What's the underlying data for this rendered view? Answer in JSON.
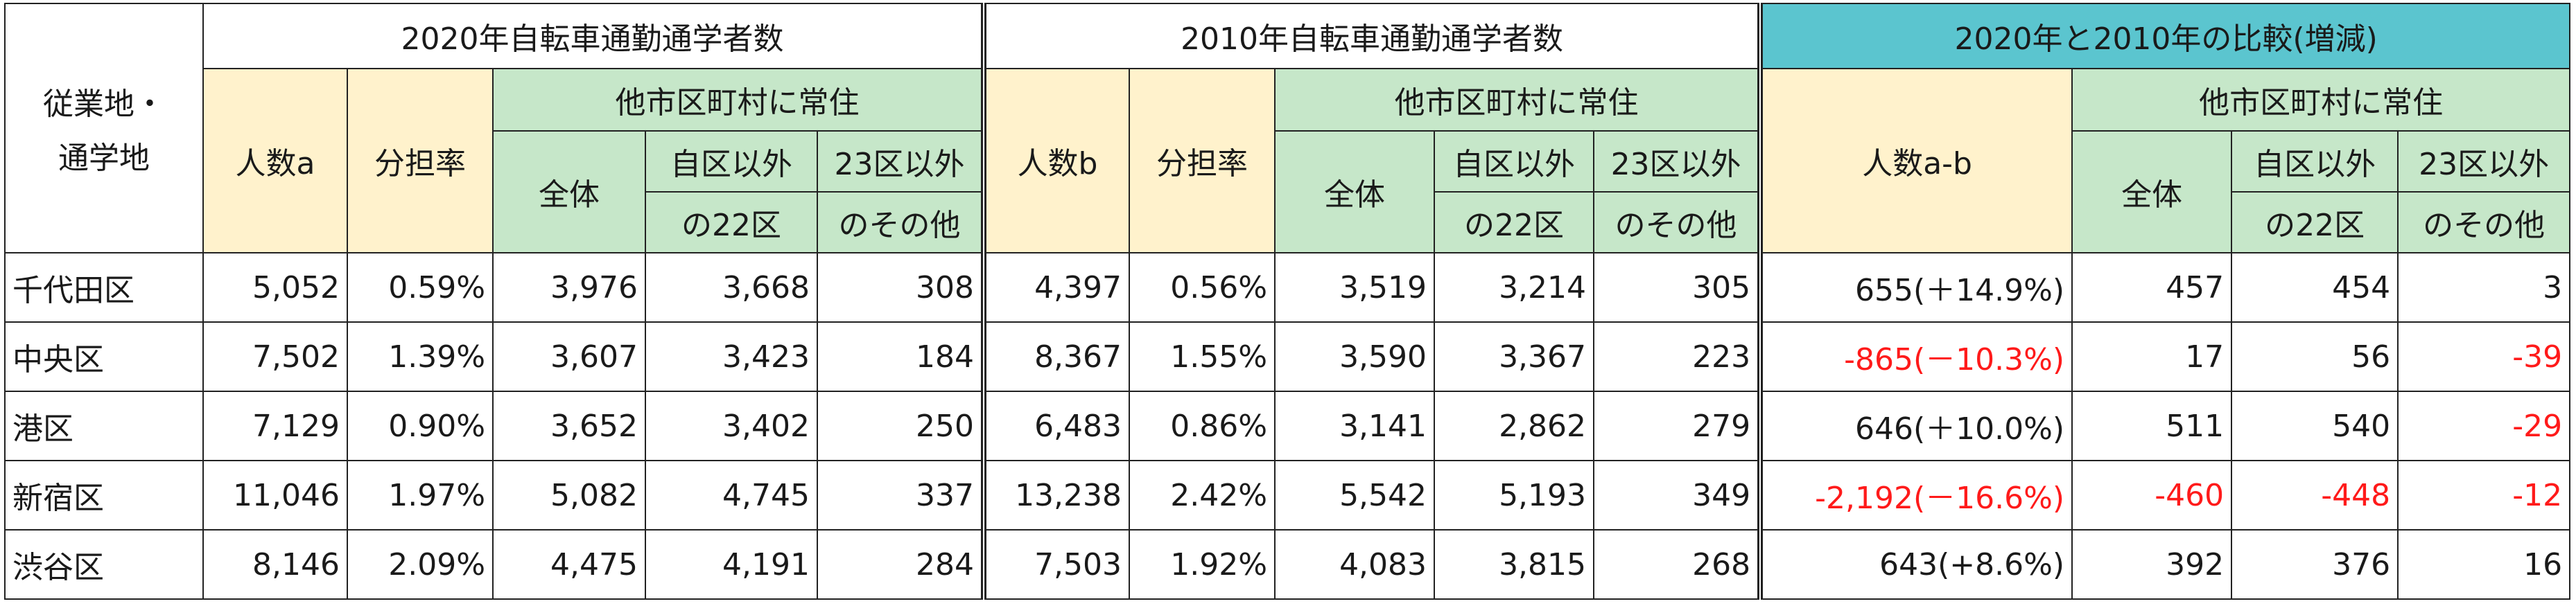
{
  "headers": {
    "place_line1": "従業地・",
    "place_line2": "通学地",
    "group_2020": "2020年自転車通勤通学者数",
    "group_2010": "2010年自転車通勤通学者数",
    "group_compare": "2020年と2010年の比較(増減)",
    "count_a": "人数a",
    "count_b": "人数b",
    "count_diff": "人数a-b",
    "share": "分担率",
    "other_resident": "他市区町村に常住",
    "total": "全体",
    "other22_line1": "自区以外",
    "other22_line2": "の22区",
    "outside23_line1": "23区以外",
    "outside23_line2": "のその他"
  },
  "colors": {
    "yellow": "#fff2cc",
    "green": "#c6e7c9",
    "teal": "#5bc5cf",
    "negative": "#ff1a1a"
  },
  "rows": [
    {
      "name": "千代田区",
      "a": "5,052",
      "a_share": "0.59%",
      "a_total": "3,976",
      "a_22": "3,668",
      "a_other": "308",
      "b": "4,397",
      "b_share": "0.56%",
      "b_total": "3,519",
      "b_22": "3,214",
      "b_other": "305",
      "diff": "655(＋14.9%)",
      "d_total": "457",
      "d_22": "454",
      "d_other": "3",
      "neg": {
        "diff": false,
        "d_total": false,
        "d_22": false,
        "d_other": false
      }
    },
    {
      "name": "中央区",
      "a": "7,502",
      "a_share": "1.39%",
      "a_total": "3,607",
      "a_22": "3,423",
      "a_other": "184",
      "b": "8,367",
      "b_share": "1.55%",
      "b_total": "3,590",
      "b_22": "3,367",
      "b_other": "223",
      "diff": "-865(－10.3%)",
      "d_total": "17",
      "d_22": "56",
      "d_other": "-39",
      "neg": {
        "diff": true,
        "d_total": false,
        "d_22": false,
        "d_other": true
      }
    },
    {
      "name": "港区",
      "a": "7,129",
      "a_share": "0.90%",
      "a_total": "3,652",
      "a_22": "3,402",
      "a_other": "250",
      "b": "6,483",
      "b_share": "0.86%",
      "b_total": "3,141",
      "b_22": "2,862",
      "b_other": "279",
      "diff": "646(＋10.0%)",
      "d_total": "511",
      "d_22": "540",
      "d_other": "-29",
      "neg": {
        "diff": false,
        "d_total": false,
        "d_22": false,
        "d_other": true
      }
    },
    {
      "name": "新宿区",
      "a": "11,046",
      "a_share": "1.97%",
      "a_total": "5,082",
      "a_22": "4,745",
      "a_other": "337",
      "b": "13,238",
      "b_share": "2.42%",
      "b_total": "5,542",
      "b_22": "5,193",
      "b_other": "349",
      "diff": "-2,192(－16.6%)",
      "d_total": "-460",
      "d_22": "-448",
      "d_other": "-12",
      "neg": {
        "diff": true,
        "d_total": true,
        "d_22": true,
        "d_other": true
      }
    },
    {
      "name": "渋谷区",
      "a": "8,146",
      "a_share": "2.09%",
      "a_total": "4,475",
      "a_22": "4,191",
      "a_other": "284",
      "b": "7,503",
      "b_share": "1.92%",
      "b_total": "4,083",
      "b_22": "3,815",
      "b_other": "268",
      "diff": "643(+8.6%)",
      "d_total": "392",
      "d_22": "376",
      "d_other": "16",
      "neg": {
        "diff": false,
        "d_total": false,
        "d_22": false,
        "d_other": false
      }
    }
  ]
}
